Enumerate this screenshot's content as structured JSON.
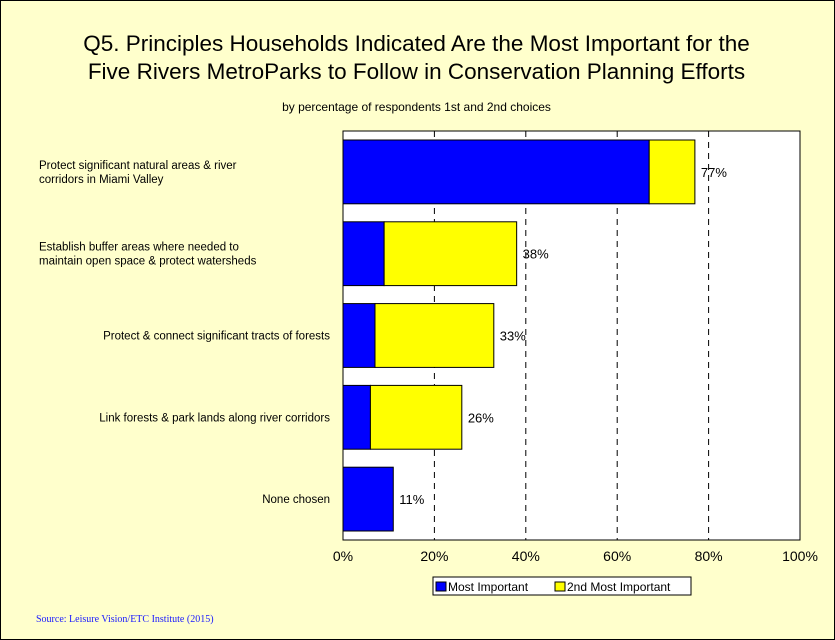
{
  "chart_data": {
    "type": "bar",
    "orientation": "horizontal",
    "stacked": true,
    "title_line1": "Q5. Principles Households Indicated Are the Most Important for the",
    "title_line2": "Five Rivers MetroParks to Follow in Conservation Planning Efforts",
    "subtitle": "by percentage of respondents 1st and 2nd choices",
    "categories": [
      [
        "Protect significant natural areas & river",
        "corridors in Miami Valley"
      ],
      [
        "Establish buffer areas where needed to",
        "maintain open space & protect watersheds"
      ],
      [
        "Protect & connect significant tracts of forests"
      ],
      [
        "Link forests & park lands along river corridors"
      ],
      [
        "None chosen"
      ]
    ],
    "series": [
      {
        "name": "Most Important",
        "color": "#0000ff",
        "values": [
          67,
          9,
          7,
          6,
          11
        ]
      },
      {
        "name": "2nd Most Important",
        "color": "#ffff00",
        "values": [
          10,
          29,
          26,
          20,
          0
        ]
      }
    ],
    "total_labels": [
      "77%",
      "38%",
      "33%",
      "26%",
      "11%"
    ],
    "xlim": [
      0,
      100
    ],
    "xticks": [
      0,
      20,
      40,
      60,
      80,
      100
    ],
    "xtick_labels": [
      "0%",
      "20%",
      "40%",
      "60%",
      "80%",
      "100%"
    ],
    "gridlines": "dashed vertical at 20, 40, 60, 80",
    "legend_position": "bottom"
  },
  "source": "Source:  Leisure Vision/ETC Institute (2015)"
}
